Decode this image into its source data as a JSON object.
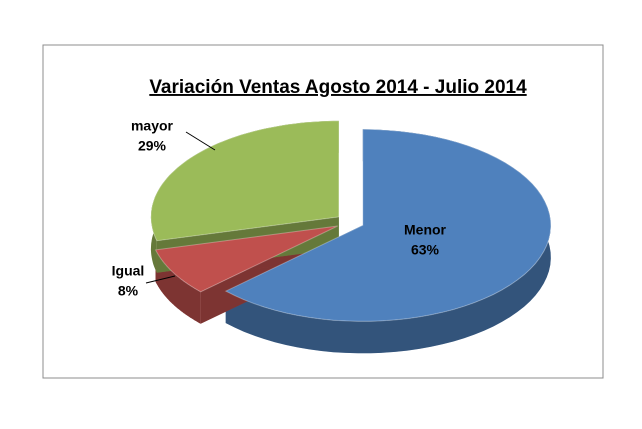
{
  "chart_data": {
    "type": "pie3d",
    "title": "Variación Ventas Agosto 2014 - Julio 2014",
    "categories": [
      "Menor",
      "Igual",
      "mayor"
    ],
    "values": [
      63,
      8,
      29
    ],
    "value_labels": [
      "63%",
      "8%",
      "29%"
    ],
    "colors": [
      "#4f81bd",
      "#c0504d",
      "#9bbb59"
    ]
  }
}
